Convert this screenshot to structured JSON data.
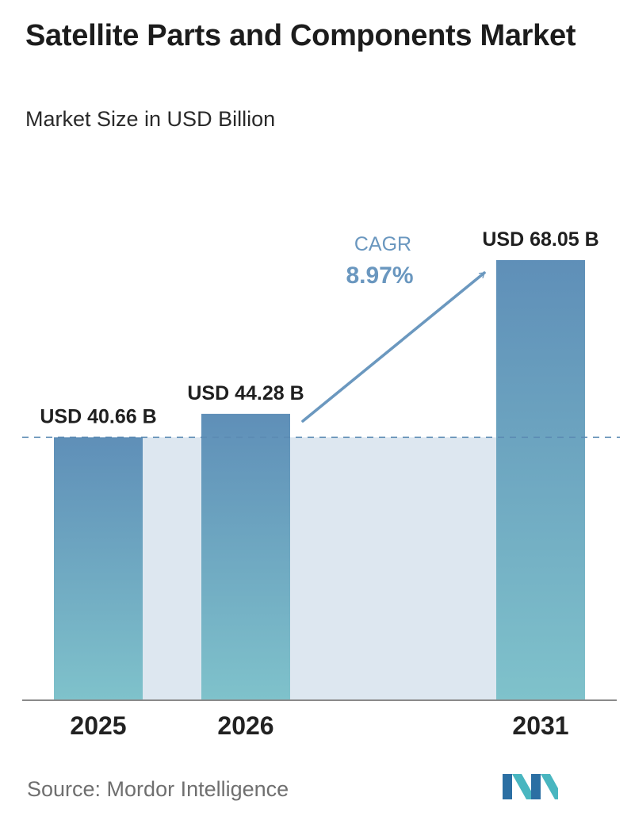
{
  "header": {
    "title": "Satellite Parts and Components Market",
    "subtitle": "Market Size in USD Billion"
  },
  "chart_data": {
    "type": "bar",
    "title": "Satellite Parts and Components Market",
    "subtitle": "Market Size in USD Billion",
    "categories": [
      "2025",
      "2026",
      "2031"
    ],
    "values": [
      40.66,
      44.28,
      68.05
    ],
    "data_labels": [
      "USD 40.66 B",
      "USD 44.28 B",
      "USD 68.05 B"
    ],
    "ylim": [
      0,
      68.05
    ],
    "grid": false,
    "legend": "none",
    "reference_line_value": 40.66,
    "annotation": {
      "label": "CAGR",
      "value": "8.97%"
    },
    "colors": {
      "bar_top": "#5f8fb8",
      "bar_bottom": "#7fc2cb",
      "band": "#dde7f0",
      "arrow": "#6b98bf",
      "cagr_text": "#6a97bf",
      "axis": "#8a8a8a",
      "dashed_line": "#5b8ab3"
    }
  },
  "footer": {
    "source": "Source:  Mordor Intelligence",
    "logo_icon": "mordor-intelligence-logo-icon"
  }
}
